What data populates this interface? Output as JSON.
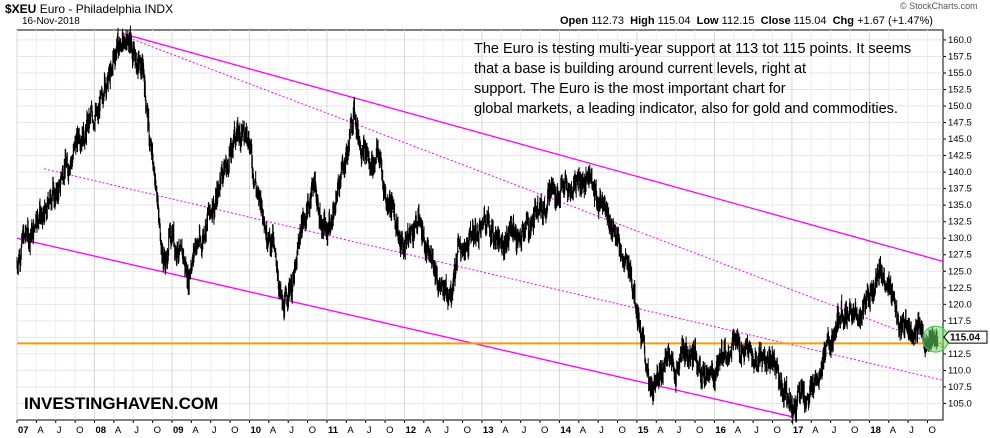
{
  "header": {
    "symbol": "$XEU",
    "name": "Euro - Philadelphia INDX",
    "date": "16-Nov-2018",
    "open_label": "Open",
    "open": "112.73",
    "high_label": "High",
    "high": "115.04",
    "low_label": "Low",
    "low": "112.15",
    "close_label": "Close",
    "close": "115.04",
    "chg_label": "Chg",
    "chg": "+1.67 (+1.47%)",
    "copyright": "© StockCharts.com"
  },
  "annotation": "The Euro is testing multi-year support at 113 tot 115 points. It seems that a base is building around current levels, right at support. The Euro is the most important chart for global markets, a leading indicator, also for gold and commodities.",
  "watermark": "INVESTINGHAVEN.COM",
  "last_price_label": "115.04",
  "colors": {
    "price": "#000000",
    "channel": "#ff00ff",
    "support": "#ff9900",
    "highlight": "#66dd66",
    "tag_border": "#000000"
  },
  "chart_data": {
    "type": "line",
    "title": "",
    "xlabel": "",
    "ylabel": "",
    "ylim": [
      102.5,
      161.5
    ],
    "y_ticks": [
      "160.0",
      "157.5",
      "155.0",
      "152.5",
      "150.0",
      "147.5",
      "145.0",
      "142.5",
      "140.0",
      "137.5",
      "135.0",
      "132.5",
      "130.0",
      "127.5",
      "125.0",
      "122.5",
      "120.0",
      "117.5",
      "115.0",
      "112.5",
      "110.0",
      "107.5",
      "105.0"
    ],
    "x_range": [
      2007.0,
      2018.95
    ],
    "x_ticks": [
      {
        "label": "07",
        "year": 2007.0,
        "bold": true
      },
      {
        "label": "A",
        "year": 2007.25
      },
      {
        "label": "J",
        "year": 2007.5
      },
      {
        "label": "O",
        "year": 2007.75
      },
      {
        "label": "08",
        "year": 2008.0,
        "bold": true
      },
      {
        "label": "A",
        "year": 2008.25
      },
      {
        "label": "J",
        "year": 2008.5
      },
      {
        "label": "O",
        "year": 2008.75
      },
      {
        "label": "09",
        "year": 2009.0,
        "bold": true
      },
      {
        "label": "A",
        "year": 2009.25
      },
      {
        "label": "J",
        "year": 2009.5
      },
      {
        "label": "O",
        "year": 2009.75
      },
      {
        "label": "10",
        "year": 2010.0,
        "bold": true
      },
      {
        "label": "A",
        "year": 2010.25
      },
      {
        "label": "J",
        "year": 2010.5
      },
      {
        "label": "O",
        "year": 2010.75
      },
      {
        "label": "11",
        "year": 2011.0,
        "bold": true
      },
      {
        "label": "A",
        "year": 2011.25
      },
      {
        "label": "J",
        "year": 2011.5
      },
      {
        "label": "O",
        "year": 2011.75
      },
      {
        "label": "12",
        "year": 2012.0,
        "bold": true
      },
      {
        "label": "A",
        "year": 2012.25
      },
      {
        "label": "J",
        "year": 2012.5
      },
      {
        "label": "O",
        "year": 2012.75
      },
      {
        "label": "13",
        "year": 2013.0,
        "bold": true
      },
      {
        "label": "A",
        "year": 2013.25
      },
      {
        "label": "J",
        "year": 2013.5
      },
      {
        "label": "O",
        "year": 2013.75
      },
      {
        "label": "14",
        "year": 2014.0,
        "bold": true
      },
      {
        "label": "A",
        "year": 2014.25
      },
      {
        "label": "J",
        "year": 2014.5
      },
      {
        "label": "O",
        "year": 2014.75
      },
      {
        "label": "15",
        "year": 2015.0,
        "bold": true
      },
      {
        "label": "A",
        "year": 2015.25
      },
      {
        "label": "J",
        "year": 2015.5
      },
      {
        "label": "O",
        "year": 2015.75
      },
      {
        "label": "16",
        "year": 2016.0,
        "bold": true
      },
      {
        "label": "A",
        "year": 2016.25
      },
      {
        "label": "J",
        "year": 2016.5
      },
      {
        "label": "O",
        "year": 2016.75
      },
      {
        "label": "17",
        "year": 2017.0,
        "bold": true
      },
      {
        "label": "A",
        "year": 2017.25
      },
      {
        "label": "J",
        "year": 2017.5
      },
      {
        "label": "O",
        "year": 2017.75
      },
      {
        "label": "18",
        "year": 2018.0,
        "bold": true
      },
      {
        "label": "A",
        "year": 2018.25
      },
      {
        "label": "J",
        "year": 2018.5
      },
      {
        "label": "O",
        "year": 2018.75
      }
    ],
    "series": [
      {
        "points": [
          [
            2007.0,
            126.5
          ],
          [
            2007.08,
            129.5
          ],
          [
            2007.2,
            131.5
          ],
          [
            2007.35,
            134
          ],
          [
            2007.5,
            137
          ],
          [
            2007.65,
            141
          ],
          [
            2007.8,
            145
          ],
          [
            2007.92,
            147
          ],
          [
            2008.0,
            148.5
          ],
          [
            2008.1,
            151
          ],
          [
            2008.2,
            155.5
          ],
          [
            2008.3,
            158.5
          ],
          [
            2008.38,
            160.5
          ],
          [
            2008.48,
            158.5
          ],
          [
            2008.56,
            157
          ],
          [
            2008.63,
            154.5
          ],
          [
            2008.7,
            147
          ],
          [
            2008.78,
            138.5
          ],
          [
            2008.86,
            129.5
          ],
          [
            2008.92,
            126
          ],
          [
            2009.0,
            131
          ],
          [
            2009.08,
            128
          ],
          [
            2009.15,
            126.5
          ],
          [
            2009.2,
            124.5
          ],
          [
            2009.3,
            128
          ],
          [
            2009.45,
            132
          ],
          [
            2009.6,
            137.5
          ],
          [
            2009.75,
            143
          ],
          [
            2009.9,
            147
          ],
          [
            2010.0,
            144
          ],
          [
            2010.1,
            137
          ],
          [
            2010.2,
            132
          ],
          [
            2010.3,
            129
          ],
          [
            2010.4,
            122
          ],
          [
            2010.45,
            119.5
          ],
          [
            2010.55,
            123
          ],
          [
            2010.65,
            130
          ],
          [
            2010.75,
            135
          ],
          [
            2010.83,
            138
          ],
          [
            2010.9,
            134
          ],
          [
            2011.0,
            130
          ],
          [
            2011.1,
            135
          ],
          [
            2011.2,
            140
          ],
          [
            2011.3,
            146
          ],
          [
            2011.35,
            148.5
          ],
          [
            2011.45,
            144
          ],
          [
            2011.55,
            141
          ],
          [
            2011.65,
            143
          ],
          [
            2011.75,
            137
          ],
          [
            2011.85,
            134
          ],
          [
            2011.95,
            130
          ],
          [
            2012.0,
            128
          ],
          [
            2012.1,
            132
          ],
          [
            2012.2,
            132
          ],
          [
            2012.3,
            128
          ],
          [
            2012.4,
            125
          ],
          [
            2012.5,
            122
          ],
          [
            2012.55,
            121
          ],
          [
            2012.6,
            122.5
          ],
          [
            2012.7,
            128
          ],
          [
            2012.8,
            129
          ],
          [
            2012.9,
            130.5
          ],
          [
            2013.0,
            132
          ],
          [
            2013.1,
            132.5
          ],
          [
            2013.2,
            129
          ],
          [
            2013.3,
            130
          ],
          [
            2013.4,
            131
          ],
          [
            2013.5,
            130
          ],
          [
            2013.6,
            132
          ],
          [
            2013.7,
            134
          ],
          [
            2013.8,
            135
          ],
          [
            2013.9,
            137
          ],
          [
            2014.0,
            137
          ],
          [
            2014.1,
            137.5
          ],
          [
            2014.2,
            138
          ],
          [
            2014.3,
            139
          ],
          [
            2014.4,
            139
          ],
          [
            2014.5,
            136
          ],
          [
            2014.6,
            134.5
          ],
          [
            2014.7,
            131
          ],
          [
            2014.8,
            128
          ],
          [
            2014.9,
            125
          ],
          [
            2015.0,
            120
          ],
          [
            2015.05,
            115
          ],
          [
            2015.12,
            111
          ],
          [
            2015.2,
            106.5
          ],
          [
            2015.3,
            110
          ],
          [
            2015.4,
            112
          ],
          [
            2015.5,
            110
          ],
          [
            2015.6,
            112.5
          ],
          [
            2015.7,
            113
          ],
          [
            2015.8,
            110.5
          ],
          [
            2015.92,
            108.5
          ],
          [
            2016.0,
            110
          ],
          [
            2016.1,
            112
          ],
          [
            2016.2,
            113.5
          ],
          [
            2016.3,
            114
          ],
          [
            2016.4,
            113
          ],
          [
            2016.5,
            112
          ],
          [
            2016.6,
            111.5
          ],
          [
            2016.7,
            112
          ],
          [
            2016.8,
            110
          ],
          [
            2016.9,
            107
          ],
          [
            2016.97,
            105
          ],
          [
            2017.02,
            104.5
          ],
          [
            2017.1,
            106.5
          ],
          [
            2017.2,
            106
          ],
          [
            2017.3,
            108
          ],
          [
            2017.4,
            112
          ],
          [
            2017.5,
            114
          ],
          [
            2017.6,
            117.5
          ],
          [
            2017.7,
            119
          ],
          [
            2017.8,
            118
          ],
          [
            2017.9,
            119
          ],
          [
            2018.0,
            121
          ],
          [
            2018.08,
            124
          ],
          [
            2018.15,
            124.5
          ],
          [
            2018.25,
            123
          ],
          [
            2018.33,
            119
          ],
          [
            2018.42,
            116.5
          ],
          [
            2018.5,
            116.5
          ],
          [
            2018.6,
            116
          ],
          [
            2018.7,
            115.5
          ],
          [
            2018.8,
            113.5
          ],
          [
            2018.88,
            115.04
          ]
        ]
      }
    ],
    "channel_lines": [
      {
        "style": "solid",
        "from": [
          2008.35,
          161
        ],
        "to": [
          2018.95,
          126.5
        ]
      },
      {
        "style": "solid",
        "from": [
          2007.0,
          130
        ],
        "to": [
          2017.0,
          103
        ]
      },
      {
        "style": "dotted",
        "from": [
          2008.4,
          160.5
        ],
        "to": [
          2018.95,
          113.5
        ]
      },
      {
        "style": "dotted",
        "from": [
          2007.35,
          140.5
        ],
        "to": [
          2018.95,
          108.5
        ]
      }
    ],
    "support_line": {
      "value": 114.1
    },
    "last_value": 115.04
  }
}
